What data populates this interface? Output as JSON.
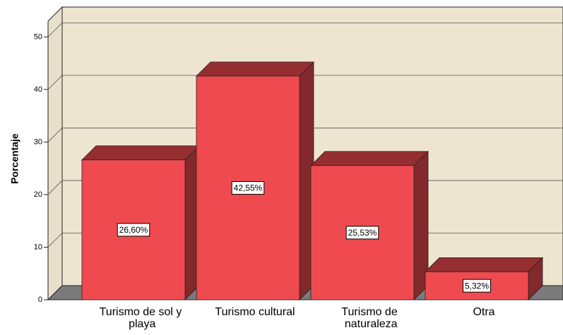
{
  "chart_data": {
    "type": "bar3d",
    "categories": [
      "Turismo de sol y playa",
      "Turismo cultural",
      "Turismo de naturaleza",
      "Otra"
    ],
    "values": [
      26.6,
      42.55,
      25.53,
      5.32
    ],
    "value_labels": [
      "26,60%",
      "42,55%",
      "25,53%",
      "5,32%"
    ],
    "ylabel": "Porcentaje",
    "ylim": [
      0,
      53
    ],
    "yticks": [
      0,
      10,
      20,
      30,
      40,
      50
    ],
    "color": "#ef4a4f",
    "grid": true
  }
}
